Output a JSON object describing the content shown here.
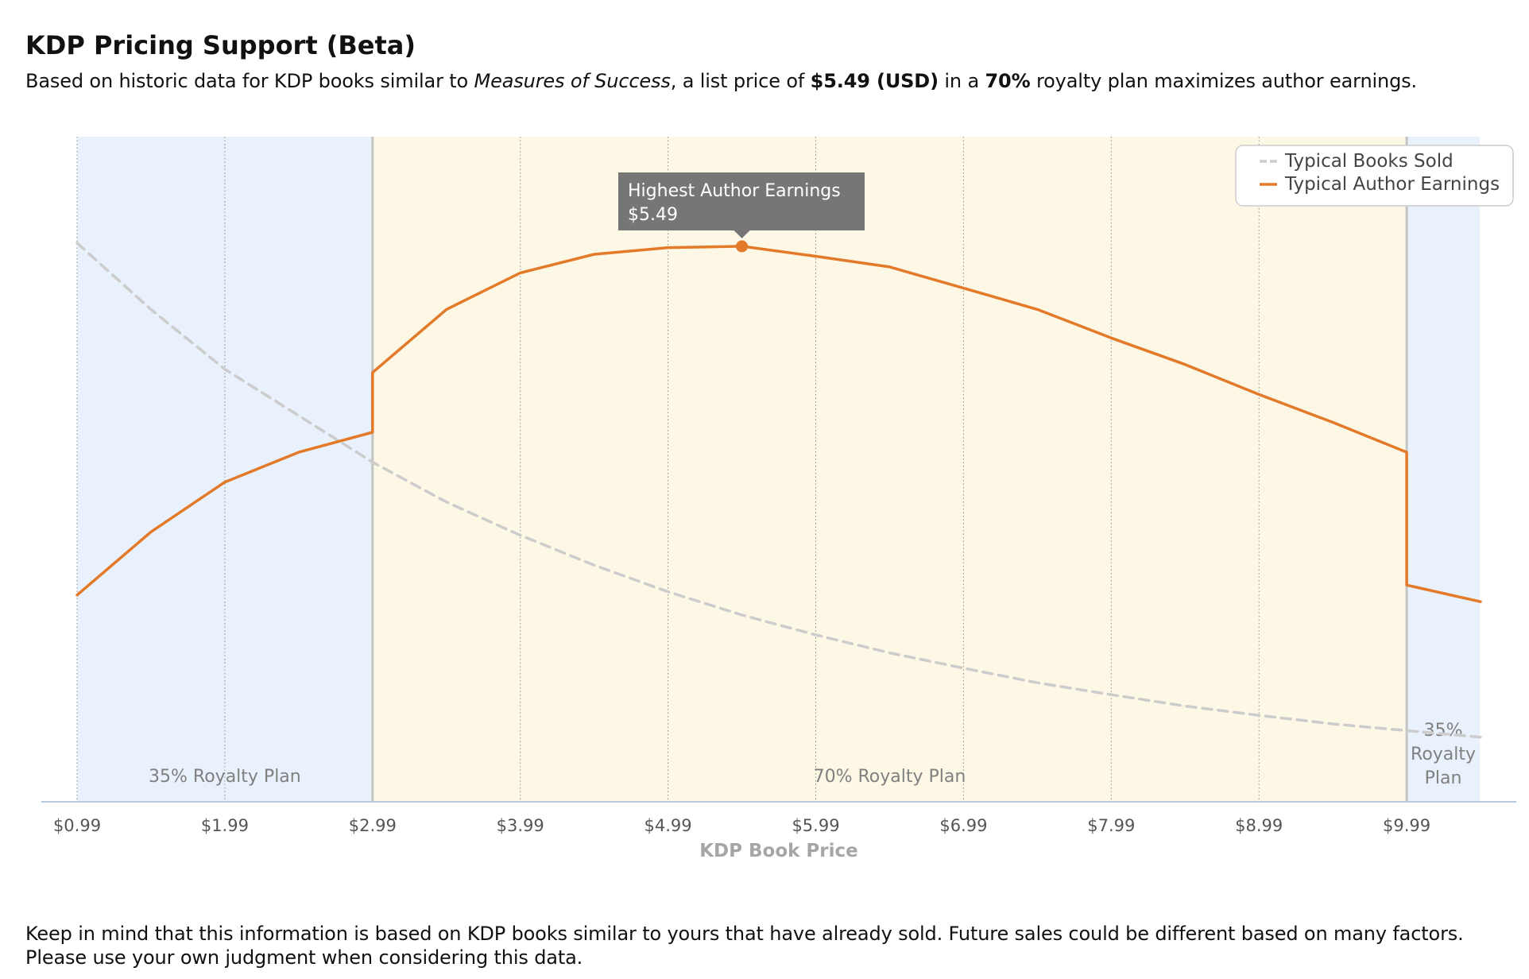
{
  "header": {
    "title": "KDP Pricing Support (Beta)",
    "subtitle_prefix": "Based on historic data for KDP books similar to ",
    "book_title": "Measures of Success",
    "subtitle_mid1": ", a list price of ",
    "price": "$5.49 (USD)",
    "subtitle_mid2": " in a ",
    "royalty": "70%",
    "subtitle_suffix": " royalty plan maximizes author earnings."
  },
  "chart_data": {
    "type": "line",
    "xlabel": "KDP Book Price",
    "ylabel": "",
    "xlim": [
      0.99,
      10.49
    ],
    "x_ticks": [
      "$0.99",
      "$1.99",
      "$2.99",
      "$3.99",
      "$4.99",
      "$5.99",
      "$6.99",
      "$7.99",
      "$8.99",
      "$9.99"
    ],
    "x_tick_values": [
      0.99,
      1.99,
      2.99,
      3.99,
      4.99,
      5.99,
      6.99,
      7.99,
      8.99,
      9.99
    ],
    "y_axis_labels_shown": false,
    "grid": "vertical dotted",
    "legend": "top-right",
    "regions": [
      {
        "label": "35% Royalty Plan",
        "from": 0.99,
        "to": 2.99,
        "color": "#e9f1fc"
      },
      {
        "label": "70% Royalty Plan",
        "from": 2.99,
        "to": 9.99,
        "color": "#fdf8e6"
      },
      {
        "label": "35% Royalty Plan",
        "from": 9.99,
        "to": 10.49,
        "color": "#e9f1fc"
      }
    ],
    "series": [
      {
        "name": "Typical Books Sold",
        "style": "dashed",
        "color": "#cccccc",
        "points": [
          [
            0.99,
            84
          ],
          [
            1.49,
            74
          ],
          [
            1.99,
            65
          ],
          [
            2.49,
            58
          ],
          [
            2.99,
            51
          ],
          [
            3.49,
            45
          ],
          [
            3.99,
            40
          ],
          [
            4.49,
            35.5
          ],
          [
            4.99,
            31.5
          ],
          [
            5.49,
            28
          ],
          [
            5.99,
            25
          ],
          [
            6.49,
            22.3
          ],
          [
            6.99,
            20
          ],
          [
            7.49,
            17.8
          ],
          [
            7.99,
            16
          ],
          [
            8.49,
            14.3
          ],
          [
            8.99,
            12.9
          ],
          [
            9.49,
            11.6
          ],
          [
            9.99,
            10.6
          ],
          [
            10.49,
            9.6
          ]
        ]
      },
      {
        "name": "Typical Author Earnings",
        "style": "solid",
        "color": "#e37a2a",
        "points": [
          [
            0.99,
            31
          ],
          [
            1.49,
            40.5
          ],
          [
            1.99,
            48
          ],
          [
            2.49,
            52.5
          ],
          [
            2.99,
            55.5
          ],
          [
            2.99,
            64.5
          ],
          [
            3.49,
            74
          ],
          [
            3.99,
            79.5
          ],
          [
            4.49,
            82.3
          ],
          [
            4.99,
            83.3
          ],
          [
            5.49,
            83.5
          ],
          [
            5.99,
            82
          ],
          [
            6.49,
            80.4
          ],
          [
            6.99,
            77.2
          ],
          [
            7.49,
            74
          ],
          [
            7.99,
            69.7
          ],
          [
            8.49,
            65.7
          ],
          [
            8.99,
            61.2
          ],
          [
            9.49,
            57
          ],
          [
            9.99,
            52.5
          ],
          [
            9.99,
            32.5
          ],
          [
            10.49,
            30
          ]
        ]
      }
    ],
    "ylim": [
      0,
      100
    ],
    "annotation": {
      "title": "Highest Author Earnings",
      "value": "$5.49",
      "x": 5.49,
      "y": 83.5
    }
  },
  "footer": {
    "text": "Keep in mind that this information is based on KDP books similar to yours that have already sold. Future sales could be different based on many factors. Please use your own judgment when considering this data."
  },
  "colors": {
    "earnings_line": "#e37a2a",
    "books_line": "#cccccc",
    "region_35": "#e9f1fc",
    "region_70": "#fdf8e6",
    "tooltip_bg": "#767676"
  }
}
